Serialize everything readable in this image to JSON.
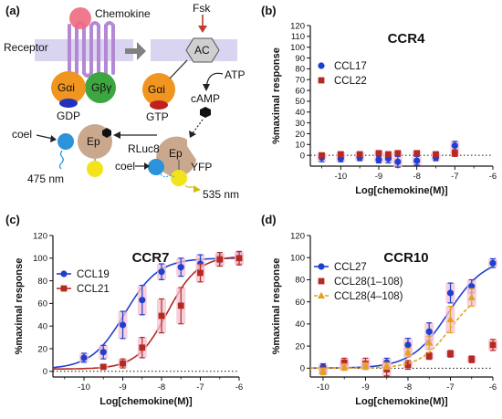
{
  "panels": {
    "a": "(a)",
    "b": "(b)",
    "c": "(c)",
    "d": "(d)"
  },
  "diagram": {
    "chemokine": "Chemokine",
    "receptor": "Receptor",
    "fsk": "Fsk",
    "ac": "AC",
    "atp": "ATP",
    "camp": "cAMP",
    "galpha_left": "Gαi",
    "gbg": "Gβγ",
    "gdp": "GDP",
    "galpha_right": "Gαi",
    "gtp": "GTP",
    "ep_left": "Ep",
    "ep_right": "Ep",
    "coel_left": "coel",
    "coel_right": "coel",
    "rluc8": "RLuc8",
    "yfp": "YFP",
    "nm475": "475 nm",
    "nm535": "535 nm"
  },
  "colors": {
    "blue": "#1f3fcf",
    "red": "#b52a20",
    "orange": "#e3a21c",
    "pinkErr": "#f4c0d3",
    "receptor": "#b488d3",
    "membrane": "#d9d4f0",
    "galpha": "#f0951f",
    "gbg": "#3ea640",
    "ep": "#c9a88d",
    "rluc": "#2b93d9",
    "yfp": "#f2e31a",
    "chemokine": "#f06a80"
  },
  "chart_data": [
    {
      "panel": "b",
      "type": "scatter",
      "title": "CCR4",
      "xlabel": "Log[chemokine(M)]",
      "ylabel": "%maximal response",
      "xlim": [
        -10.8,
        -6
      ],
      "ylim": [
        -10,
        120
      ],
      "xticks": [
        -10,
        -9,
        -8,
        -7,
        -6
      ],
      "yticks": [
        0,
        10,
        20,
        30,
        40,
        50,
        60,
        70,
        80,
        90,
        100,
        110,
        120
      ],
      "legend_position": "top-left",
      "series": [
        {
          "name": "CCL17",
          "marker": "circle",
          "color": "blue",
          "x": [
            -10.5,
            -10,
            -9.5,
            -9,
            -8.75,
            -8.5,
            -8,
            -7.5,
            -7
          ],
          "y": [
            -2,
            -3,
            -2,
            -4,
            -3,
            -6,
            -5,
            -2,
            9
          ],
          "err": [
            4,
            3,
            3,
            3,
            4,
            5,
            4,
            3,
            4
          ]
        },
        {
          "name": "CCL22",
          "marker": "square",
          "color": "red",
          "x": [
            -10.5,
            -10,
            -9.5,
            -9,
            -8.75,
            -8.5,
            -8,
            -7.5,
            -7
          ],
          "y": [
            0,
            1,
            1,
            2,
            1,
            2,
            2,
            1,
            2
          ],
          "err": [
            2,
            2,
            2,
            2,
            2,
            2,
            2,
            2,
            3
          ]
        }
      ]
    },
    {
      "panel": "c",
      "type": "line",
      "title": "CCR7",
      "xlabel": "Log[chemokine(M)]",
      "ylabel": "%maximal response",
      "xlim": [
        -10.8,
        -6
      ],
      "ylim": [
        -5,
        120
      ],
      "xticks": [
        -10,
        -9,
        -8,
        -7,
        -6
      ],
      "yticks": [
        0,
        20,
        40,
        60,
        80,
        100,
        120
      ],
      "legend_position": "top-left",
      "series": [
        {
          "name": "CCL19",
          "marker": "circle",
          "color": "blue",
          "x": [
            -10,
            -9.5,
            -9,
            -8.5,
            -8,
            -7.5,
            -7,
            -6.5,
            -6
          ],
          "y": [
            12,
            17,
            41,
            63,
            88,
            92,
            95,
            98,
            100
          ],
          "err": [
            4,
            6,
            12,
            13,
            7,
            8,
            8,
            5,
            5
          ],
          "fit": {
            "bottom": 2,
            "top": 100,
            "logEC50": -8.95,
            "hill": 1.0
          }
        },
        {
          "name": "CCL21",
          "marker": "square",
          "color": "red",
          "x": [
            -9.5,
            -9,
            -8.5,
            -8,
            -7.5,
            -7,
            -6.5,
            -6
          ],
          "y": [
            4,
            7,
            21,
            49,
            58,
            87,
            99,
            100
          ],
          "err": [
            2,
            4,
            9,
            15,
            16,
            8,
            6,
            6
          ],
          "fit": {
            "bottom": 2,
            "top": 102,
            "logEC50": -7.85,
            "hill": 1.1
          }
        }
      ]
    },
    {
      "panel": "d",
      "type": "line",
      "title": "CCR10",
      "xlabel": "Log[chemokine(M)]",
      "ylabel": "%maximal response",
      "xlim": [
        -10.3,
        -6
      ],
      "ylim": [
        -8,
        120
      ],
      "xticks": [
        -10,
        -9,
        -8,
        -7,
        -6
      ],
      "yticks": [
        0,
        20,
        40,
        60,
        80,
        100,
        120
      ],
      "legend_position": "top-left",
      "series": [
        {
          "name": "CCL27",
          "marker": "circle",
          "color": "blue",
          "x": [
            -10,
            -9.5,
            -9,
            -8.5,
            -8,
            -7.5,
            -7,
            -6.5,
            -6
          ],
          "y": [
            1,
            3,
            2,
            5,
            21,
            33,
            68,
            74,
            95
          ],
          "err": [
            3,
            3,
            3,
            4,
            6,
            8,
            9,
            6,
            4
          ],
          "fit": {
            "bottom": 0,
            "top": 100,
            "logEC50": -7.05,
            "hill": 1.0
          }
        },
        {
          "name": "CCL28(1–108)",
          "marker": "square",
          "color": "red",
          "x": [
            -10,
            -9.5,
            -9,
            -8.5,
            -8,
            -7.5,
            -7,
            -6.5,
            -6
          ],
          "y": [
            -2,
            5,
            4,
            -1,
            3,
            11,
            13,
            8,
            21
          ],
          "err": [
            3,
            4,
            5,
            6,
            4,
            3,
            3,
            3,
            5
          ]
        },
        {
          "name": "CCL28(4–108)",
          "marker": "triangle",
          "color": "orange",
          "x": [
            -10,
            -9.5,
            -9,
            -8.5,
            -8,
            -7.5,
            -7,
            -6.5
          ],
          "y": [
            -3,
            1,
            2,
            2,
            14,
            23,
            44,
            64
          ],
          "err": [
            3,
            3,
            3,
            3,
            4,
            6,
            12,
            8
          ],
          "fit": {
            "bottom": 0,
            "top": 72,
            "logEC50": -7.0,
            "hill": 1.2,
            "xmax": -6.5
          }
        }
      ]
    }
  ]
}
